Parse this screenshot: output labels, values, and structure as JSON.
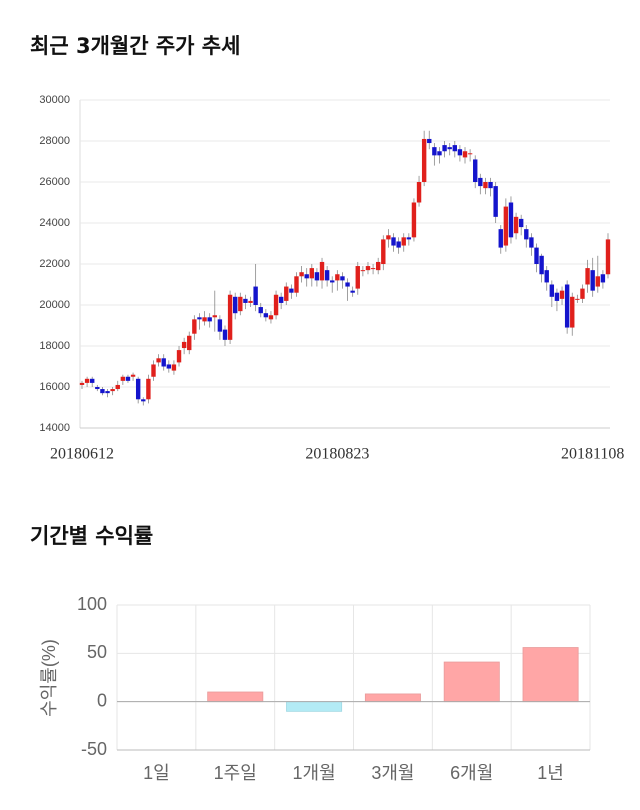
{
  "title_trend": "최근 3개월간 주가 추세",
  "title_returns": "기간별 수익률",
  "chart_data": [
    {
      "type": "candlestick",
      "categories": [
        "20180612",
        null,
        null,
        null,
        null,
        null,
        null,
        null,
        null,
        null,
        null,
        null,
        null,
        null,
        null,
        null,
        null,
        null,
        null,
        null,
        null,
        null,
        null,
        null,
        null,
        null,
        null,
        null,
        null,
        null,
        null,
        null,
        null,
        null,
        null,
        null,
        null,
        null,
        null,
        null,
        null,
        null,
        null,
        null,
        null,
        null,
        null,
        null,
        null,
        null,
        "20180823",
        null,
        null,
        null,
        null,
        null,
        null,
        null,
        null,
        null,
        null,
        null,
        null,
        null,
        null,
        null,
        null,
        null,
        null,
        null,
        null,
        null,
        null,
        null,
        null,
        null,
        null,
        null,
        null,
        null,
        null,
        null,
        null,
        null,
        null,
        null,
        null,
        null,
        null,
        null,
        null,
        null,
        null,
        null,
        null,
        null,
        null,
        null,
        null,
        null,
        "20181108",
        null,
        null,
        null
      ],
      "open": [
        16100,
        16200,
        16400,
        16000,
        15900,
        15800,
        15800,
        15900,
        16300,
        16500,
        16500,
        16400,
        15400,
        15400,
        16500,
        17200,
        17400,
        17100,
        16800,
        17200,
        17900,
        17800,
        18600,
        19400,
        19200,
        19400,
        19400,
        19300,
        18800,
        18300,
        20400,
        19700,
        20300,
        20100,
        20900,
        19900,
        19600,
        19300,
        19500,
        20400,
        20200,
        20800,
        20600,
        21400,
        21500,
        21300,
        21600,
        21200,
        21700,
        21200,
        21200,
        21400,
        21100,
        20700,
        20800,
        21700,
        21700,
        21800,
        21700,
        22000,
        23200,
        23300,
        23100,
        22900,
        23300,
        23300,
        25000,
        26000,
        28100,
        27700,
        27500,
        27800,
        27700,
        27800,
        27600,
        27200,
        27400,
        27100,
        26200,
        25700,
        26000,
        25800,
        23700,
        22900,
        25000,
        23500,
        24200,
        23700,
        23300,
        22800,
        22400,
        21700,
        21000,
        20600,
        20300,
        21000,
        18900,
        20300,
        20300,
        21000,
        21700,
        20900,
        21500,
        21500
      ],
      "high": [
        16300,
        16500,
        16500,
        16100,
        16000,
        15900,
        16000,
        16300,
        16600,
        16600,
        16700,
        16500,
        15500,
        16600,
        17300,
        17600,
        17600,
        17300,
        17300,
        18000,
        18400,
        18700,
        19500,
        19600,
        19700,
        19600,
        20700,
        19500,
        19000,
        20700,
        20600,
        20600,
        20500,
        20400,
        22000,
        20100,
        19800,
        19700,
        20700,
        20600,
        21100,
        21000,
        21600,
        21900,
        21800,
        22000,
        21800,
        22300,
        21900,
        21400,
        21700,
        21600,
        21300,
        20900,
        22100,
        21900,
        22100,
        22000,
        22300,
        23400,
        23700,
        23500,
        23300,
        23500,
        23500,
        25200,
        26300,
        28500,
        28500,
        27900,
        27700,
        28000,
        27900,
        28000,
        27800,
        27700,
        27600,
        27300,
        26400,
        26200,
        26200,
        26000,
        23900,
        25200,
        25300,
        24500,
        24400,
        23900,
        23500,
        23000,
        22500,
        21900,
        21200,
        20800,
        20900,
        21200,
        20600,
        20500,
        21000,
        22200,
        22300,
        22400,
        21700,
        23500
      ],
      "low": [
        15900,
        16000,
        16000,
        15800,
        15600,
        15500,
        15600,
        15800,
        16100,
        16200,
        16300,
        15200,
        15100,
        15200,
        16300,
        17000,
        16800,
        16700,
        16600,
        17000,
        17600,
        17600,
        18300,
        18800,
        19000,
        18900,
        18700,
        18300,
        18000,
        18100,
        19300,
        19500,
        19800,
        19900,
        19700,
        19400,
        19200,
        19100,
        19300,
        19800,
        20000,
        20300,
        20400,
        21100,
        20900,
        20900,
        20900,
        20800,
        20900,
        20600,
        20700,
        20800,
        20200,
        20400,
        20500,
        21400,
        21500,
        21500,
        21500,
        21700,
        22800,
        22600,
        22500,
        22600,
        22900,
        23100,
        24800,
        25800,
        27600,
        26800,
        26900,
        27200,
        27300,
        27200,
        27000,
        26900,
        27000,
        25700,
        25400,
        25400,
        25300,
        24000,
        22500,
        22600,
        23000,
        23200,
        23400,
        22800,
        22400,
        21600,
        21100,
        20700,
        19900,
        19700,
        20000,
        18600,
        18500,
        20100,
        20100,
        20600,
        20400,
        20600,
        20800,
        21300
      ],
      "close": [
        16200,
        16400,
        16200,
        15900,
        15700,
        15700,
        15900,
        16100,
        16500,
        16300,
        16600,
        15400,
        15300,
        16400,
        17100,
        17400,
        17000,
        16900,
        17100,
        17800,
        18200,
        18500,
        19300,
        19300,
        19400,
        19200,
        19500,
        18700,
        18300,
        20500,
        19600,
        20400,
        20100,
        20200,
        20000,
        19600,
        19400,
        19500,
        20500,
        20100,
        20900,
        20600,
        21400,
        21600,
        21300,
        21800,
        21200,
        22100,
        21200,
        21100,
        21500,
        21200,
        20900,
        20600,
        21900,
        21700,
        21900,
        21800,
        22100,
        23200,
        23400,
        22900,
        22800,
        23300,
        23200,
        25000,
        26000,
        28100,
        27900,
        27300,
        27300,
        27500,
        27600,
        27500,
        27300,
        27500,
        27400,
        26000,
        25800,
        26000,
        25700,
        24300,
        22800,
        24800,
        23300,
        24300,
        23800,
        23200,
        22800,
        22000,
        21500,
        21100,
        20400,
        20200,
        20700,
        18900,
        20400,
        20300,
        20800,
        21800,
        20700,
        21400,
        21100,
        23200
      ],
      "colors": {
        "up": "#e0201c",
        "down": "#1414cc"
      },
      "ylim": [
        14000,
        30000
      ],
      "yticks": [
        14000,
        16000,
        18000,
        20000,
        22000,
        24000,
        26000,
        28000,
        30000
      ],
      "grid": true
    },
    {
      "type": "bar",
      "categories": [
        "1일",
        "1주일",
        "1개월",
        "3개월",
        "6개월",
        "1년"
      ],
      "values": [
        0,
        10,
        -10,
        8,
        41,
        56
      ],
      "colors": {
        "positive": "#ffa6a6",
        "negative": "#b3ebf5"
      },
      "y_label": "수익률(%)",
      "ylim": [
        -50,
        100
      ],
      "yticks": [
        100,
        50,
        0,
        -50
      ],
      "grid": true
    }
  ]
}
